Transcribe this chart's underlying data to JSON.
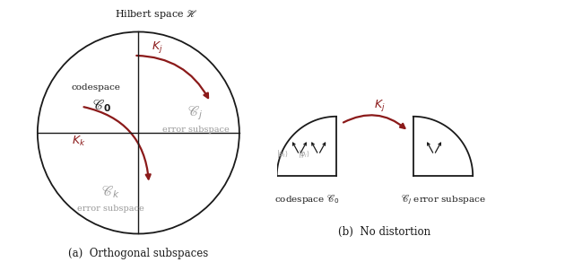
{
  "fig_width": 6.3,
  "fig_height": 3.02,
  "bg_color": "#ffffff",
  "arrow_color": "#8B1A1A",
  "line_color": "#1a1a1a",
  "text_color": "#1a1a1a",
  "gray_text": "#999999",
  "panel_a_caption": "(a)  Orthogonal subspaces",
  "panel_b_caption": "(b)  No distortion",
  "hilbert_label": "Hilbert space $\\mathscr{H}$",
  "Kj_label": "$K_j$",
  "Kk_label": "$K_k$",
  "codespace_label_b": "codespace $\\mathscr{C}_0$",
  "Cj_label_b": "$\\mathscr{C}_j$ error subspace"
}
